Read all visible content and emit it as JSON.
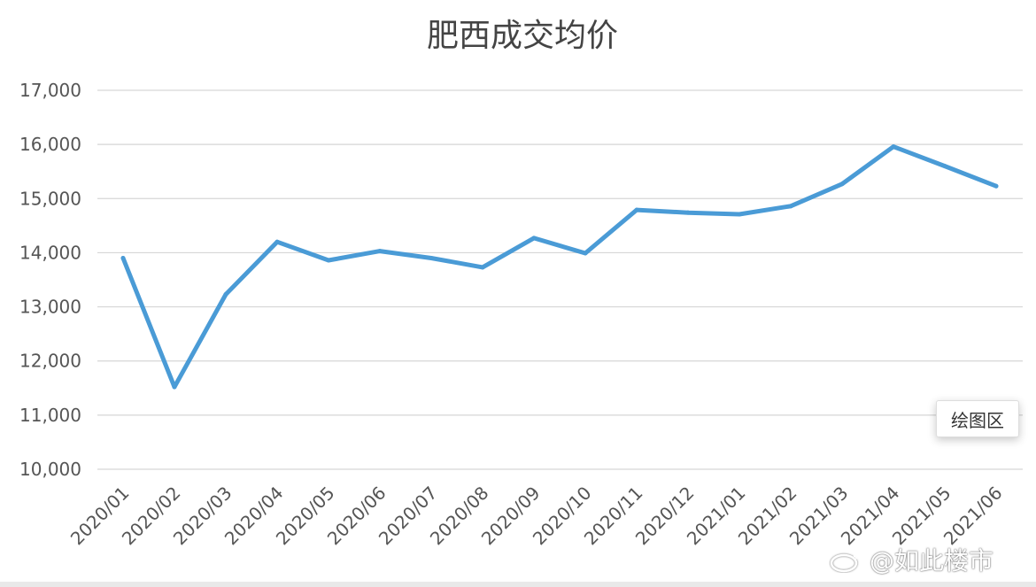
{
  "chart_data": {
    "type": "line",
    "title": "肥西成交均价",
    "xlabel": "",
    "ylabel": "",
    "categories": [
      "2020/01",
      "2020/02",
      "2020/03",
      "2020/04",
      "2020/05",
      "2020/06",
      "2020/07",
      "2020/08",
      "2020/09",
      "2020/10",
      "2020/11",
      "2020/12",
      "2021/01",
      "2021/02",
      "2021/03",
      "2021/04",
      "2021/05",
      "2021/06"
    ],
    "series": [
      {
        "values": [
          13900,
          11520,
          13230,
          14200,
          13860,
          14030,
          13900,
          13730,
          14270,
          13990,
          14790,
          14740,
          14710,
          14860,
          15270,
          15960,
          15600,
          15230
        ],
        "color": "#4a9bd6"
      }
    ],
    "ylim": [
      10000,
      17000
    ],
    "yticks": [
      10000,
      11000,
      12000,
      13000,
      14000,
      15000,
      16000,
      17000
    ],
    "ytick_labels": [
      "10,000",
      "11,000",
      "12,000",
      "13,000",
      "14,000",
      "15,000",
      "16,000",
      "17,000"
    ],
    "grid": true,
    "legend": "none"
  },
  "tooltip": {
    "label": "绘图区"
  },
  "watermark": {
    "text": "@如此楼市",
    "icon": "weibo-icon"
  }
}
